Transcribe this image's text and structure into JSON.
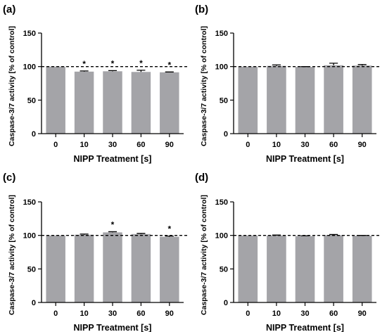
{
  "chart_data": [
    {
      "panel_label": "(a)",
      "type": "bar",
      "categories": [
        "0",
        "10",
        "30",
        "60",
        "90"
      ],
      "values": [
        100,
        92.5,
        93,
        92,
        91.5
      ],
      "errors": [
        0,
        1,
        1,
        2.5,
        0.5
      ],
      "significant": [
        false,
        true,
        true,
        true,
        true
      ],
      "significance_marker": "*",
      "xlabel": "NIPP Treatment [s]",
      "ylabel": "Caspase-3/7 activity [% of control]",
      "ylim": [
        0,
        150
      ],
      "yticks": [
        "0",
        "50",
        "100",
        "150"
      ],
      "reference_line": 100,
      "bar_color": "#a4a4a8"
    },
    {
      "panel_label": "(b)",
      "type": "bar",
      "categories": [
        "0",
        "10",
        "30",
        "60",
        "90"
      ],
      "values": [
        100,
        101,
        99.5,
        102,
        101.5
      ],
      "errors": [
        0,
        1.5,
        0.5,
        3,
        1.5
      ],
      "significant": [
        false,
        false,
        false,
        false,
        false
      ],
      "significance_marker": "*",
      "xlabel": "NIPP Treatment [s]",
      "ylabel": "Caspase-3/7 activity [% of control]",
      "ylim": [
        0,
        150
      ],
      "yticks": [
        "0",
        "50",
        "100",
        "150"
      ],
      "reference_line": 100,
      "bar_color": "#a4a4a8"
    },
    {
      "panel_label": "(c)",
      "type": "bar",
      "categories": [
        "0",
        "10",
        "30",
        "60",
        "90"
      ],
      "values": [
        100,
        101,
        104.5,
        102,
        98
      ],
      "errors": [
        0,
        1,
        1,
        1,
        1
      ],
      "significant": [
        false,
        false,
        true,
        false,
        true
      ],
      "significance_marker": "*",
      "xlabel": "NIPP Treatment [s]",
      "ylabel": "Caspase-3/7 activity [% of control]",
      "ylim": [
        0,
        150
      ],
      "yticks": [
        "0",
        "50",
        "100",
        "150"
      ],
      "reference_line": 100,
      "bar_color": "#a4a4a8"
    },
    {
      "panel_label": "(d)",
      "type": "bar",
      "categories": [
        "0",
        "10",
        "30",
        "60",
        "90"
      ],
      "values": [
        100,
        100,
        99,
        100.5,
        99.5
      ],
      "errors": [
        0,
        0.5,
        0.5,
        0.8,
        0.5
      ],
      "significant": [
        false,
        false,
        false,
        false,
        false
      ],
      "significance_marker": "*",
      "xlabel": "NIPP Treatment [s]",
      "ylabel": "Caspase-3/7 activity [% of control]",
      "ylim": [
        0,
        150
      ],
      "yticks": [
        "0",
        "50",
        "100",
        "150"
      ],
      "reference_line": 100,
      "bar_color": "#a4a4a8"
    }
  ]
}
